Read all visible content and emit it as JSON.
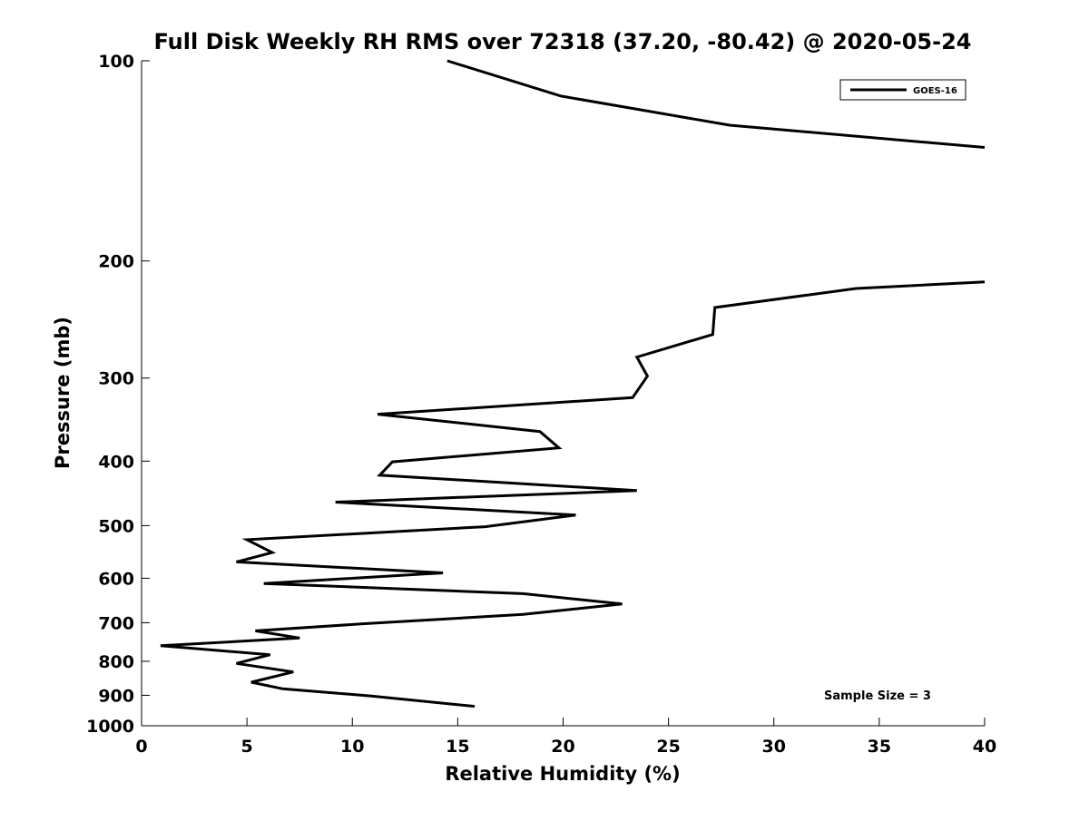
{
  "chart_data": {
    "type": "line",
    "title": "Full Disk Weekly RH RMS over 72318 (37.20, -80.42) @ 2020-05-24",
    "xlabel": "Relative Humidity (%)",
    "ylabel": "Pressure (mb)",
    "xlim": [
      0,
      40
    ],
    "ylim": [
      100,
      1000
    ],
    "y_scale": "log",
    "y_reversed": true,
    "grid": false,
    "legend_position": "top-right",
    "x_ticks": [
      "0",
      "5",
      "10",
      "15",
      "20",
      "25",
      "30",
      "35",
      "40"
    ],
    "y_ticks": [
      "100",
      "200",
      "300",
      "400",
      "500",
      "600",
      "700",
      "800",
      "900",
      "1000"
    ],
    "annotation": "Sample Size = 3",
    "series": [
      {
        "name": "GOES-16",
        "color": "#000000",
        "points": [
          [
            14.5,
            100
          ],
          [
            19.9,
            113
          ],
          [
            27.9,
            125
          ],
          [
            40.0,
            135
          ],
          null,
          [
            40.0,
            215
          ],
          [
            33.9,
            220
          ],
          [
            27.2,
            235
          ],
          [
            27.1,
            258
          ],
          [
            23.5,
            279
          ],
          [
            24.0,
            298
          ],
          [
            23.3,
            321
          ],
          [
            11.2,
            340
          ],
          [
            18.9,
            361
          ],
          [
            19.8,
            382
          ],
          [
            11.9,
            401
          ],
          [
            11.3,
            420
          ],
          [
            23.5,
            443
          ],
          [
            9.2,
            461
          ],
          [
            20.6,
            482
          ],
          [
            16.3,
            502
          ],
          [
            5.0,
            525
          ],
          [
            6.2,
            549
          ],
          [
            4.5,
            567
          ],
          [
            14.3,
            589
          ],
          [
            5.8,
            611
          ],
          [
            18.1,
            633
          ],
          [
            22.8,
            656
          ],
          [
            18.1,
            680
          ],
          [
            10.4,
            703
          ],
          [
            5.4,
            720
          ],
          [
            7.5,
            738
          ],
          [
            0.9,
            758
          ],
          [
            6.1,
            782
          ],
          [
            4.5,
            806
          ],
          [
            7.2,
            830
          ],
          [
            6.0,
            848
          ],
          [
            5.2,
            860
          ],
          [
            6.7,
            880
          ],
          [
            10.9,
            902
          ],
          [
            15.8,
            935
          ]
        ]
      }
    ]
  }
}
